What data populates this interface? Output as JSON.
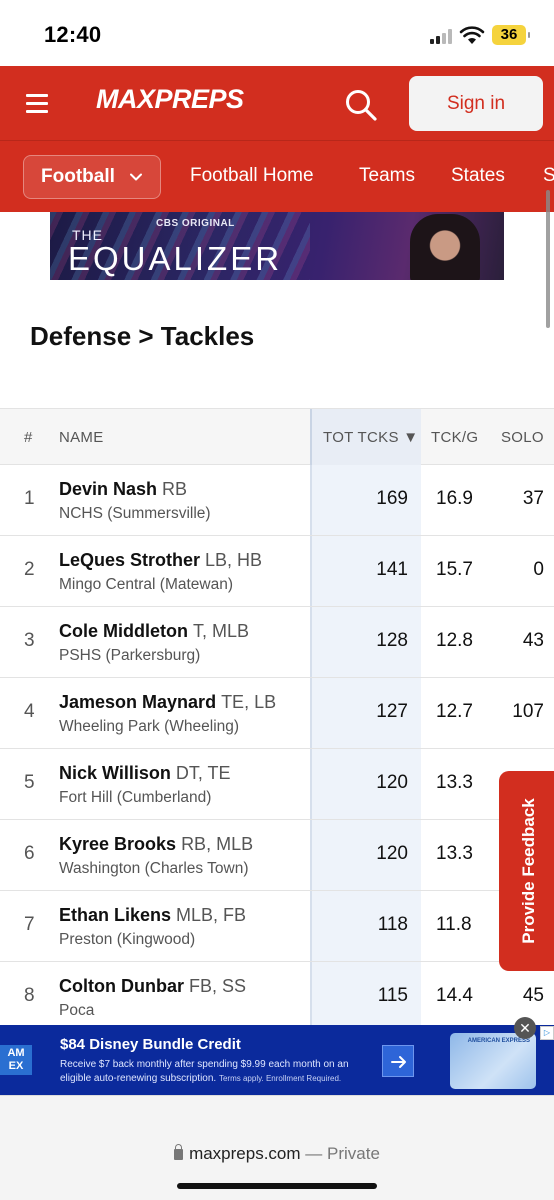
{
  "status_bar": {
    "time": "12:40",
    "battery": "36"
  },
  "header": {
    "logo": "MAXPREPS",
    "signin_label": "Sign in"
  },
  "subnav": {
    "sport": "Football",
    "links": [
      "Football Home",
      "Teams",
      "States",
      "S"
    ]
  },
  "banner": {
    "brand": "CBS ORIGINAL",
    "title_small": "THE",
    "title_large": "EQUALIZER"
  },
  "page_title": "Defense > Tackles",
  "table": {
    "columns": {
      "rank": "#",
      "name": "NAME",
      "tot": "TOT TCKS ▼",
      "tckg": "TCK/G",
      "solo": "SOLO"
    },
    "rows": [
      {
        "rank": "1",
        "name": "Devin Nash",
        "pos": "RB",
        "school": "NCHS (Summersville)",
        "tot": "169",
        "tckg": "16.9",
        "solo": "37"
      },
      {
        "rank": "2",
        "name": "LeQues Strother",
        "pos": "LB, HB",
        "school": "Mingo Central (Matewan)",
        "tot": "141",
        "tckg": "15.7",
        "solo": "0"
      },
      {
        "rank": "3",
        "name": "Cole Middleton",
        "pos": "T, MLB",
        "school": "PSHS (Parkersburg)",
        "tot": "128",
        "tckg": "12.8",
        "solo": "43"
      },
      {
        "rank": "4",
        "name": "Jameson Maynard",
        "pos": "TE, LB",
        "school": "Wheeling Park (Wheeling)",
        "tot": "127",
        "tckg": "12.7",
        "solo": "107"
      },
      {
        "rank": "5",
        "name": "Nick Willison",
        "pos": "DT, TE",
        "school": "Fort Hill (Cumberland)",
        "tot": "120",
        "tckg": "13.3",
        "solo": ""
      },
      {
        "rank": "6",
        "name": "Kyree Brooks",
        "pos": "RB, MLB",
        "school": "Washington (Charles Town)",
        "tot": "120",
        "tckg": "13.3",
        "solo": ""
      },
      {
        "rank": "7",
        "name": "Ethan Likens",
        "pos": "MLB, FB",
        "school": "Preston (Kingwood)",
        "tot": "118",
        "tckg": "11.8",
        "solo": ""
      },
      {
        "rank": "8",
        "name": "Colton Dunbar",
        "pos": "FB, SS",
        "school": "Poca",
        "tot": "115",
        "tckg": "14.4",
        "solo": "45"
      }
    ]
  },
  "feedback_label": "Provide Feedback",
  "ad": {
    "logo": "AM EX",
    "title": "$84 Disney Bundle Credit",
    "body": "Receive $7 back monthly after spending $9.99 each month on an eligible auto-renewing subscription.",
    "fine_print": "Terms apply. Enrollment Required.",
    "card_text": "AMERICAN EXPRESS"
  },
  "browser": {
    "domain": "maxpreps.com",
    "mode": "— Private"
  },
  "colors": {
    "brand_red": "#d22e1f",
    "ad_blue": "#0b2a9c",
    "sorted_column": "#eef3fa"
  }
}
